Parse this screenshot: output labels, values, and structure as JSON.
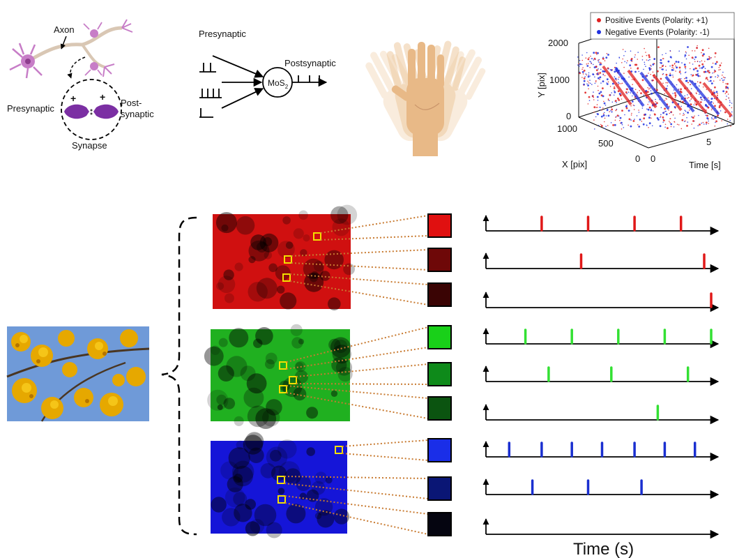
{
  "neuron_panel": {
    "axon_label": "Axon",
    "presynaptic_label": "Presynaptic",
    "postsynaptic_label_line1": "Post-",
    "postsynaptic_label_line2": "synaptic",
    "synapse_label": "Synapse",
    "plus_sign": "+",
    "colors": {
      "neuron": "#c77dc7",
      "synapse_body": "#7b2fa3",
      "axon": "#d9c7b4"
    }
  },
  "mos2_panel": {
    "presynaptic_label": "Presynaptic",
    "postsynaptic_label": "Postsynaptic",
    "node_label": "MoS",
    "node_subscript": "2"
  },
  "hand_panel": {
    "icon": "waving-hand-icon",
    "skin_color": "#eecaa0"
  },
  "event_plot": {
    "legend": [
      {
        "label": "Positive Events (Polarity: +1)",
        "color": "#e02020"
      },
      {
        "label": "Negative Events (Polarity: -1)",
        "color": "#2030e0"
      }
    ],
    "y_axis_label": "Y [pix]",
    "x_axis_label": "X [pix]",
    "t_axis_label": "Time [s]",
    "y_ticks": [
      "2000",
      "1000",
      "0"
    ],
    "x_ticks": [
      "1000",
      "500",
      "0"
    ],
    "t_ticks": [
      "0",
      "5"
    ]
  },
  "main_panel": {
    "time_label": "Time (s)",
    "source_image": "yellow-flowers-photo",
    "channels": [
      {
        "name": "red",
        "image_color": "#d01010",
        "spike_color": "#e01818",
        "swatches": [
          "#e01010",
          "#6e0808",
          "#3a0404"
        ]
      },
      {
        "name": "green",
        "image_color": "#20b020",
        "spike_color": "#33e033",
        "swatches": [
          "#19d019",
          "#0e8a1a",
          "#0b5410"
        ]
      },
      {
        "name": "blue",
        "image_color": "#1515d8",
        "spike_color": "#1a2fd0",
        "swatches": [
          "#1a2ee8",
          "#0a1675",
          "#050510"
        ]
      }
    ],
    "spike_trains": [
      {
        "channel": "red",
        "times": [
          0.24,
          0.44,
          0.64,
          0.84
        ]
      },
      {
        "channel": "red",
        "times": [
          0.41,
          0.94
        ]
      },
      {
        "channel": "red",
        "times": [
          0.97
        ]
      },
      {
        "channel": "green",
        "times": [
          0.17,
          0.37,
          0.57,
          0.77,
          0.97
        ]
      },
      {
        "channel": "green",
        "times": [
          0.27,
          0.54,
          0.87
        ]
      },
      {
        "channel": "green",
        "times": [
          0.74
        ]
      },
      {
        "channel": "blue",
        "times": [
          0.1,
          0.24,
          0.37,
          0.5,
          0.64,
          0.77,
          0.9
        ]
      },
      {
        "channel": "blue",
        "times": [
          0.2,
          0.44,
          0.67
        ]
      },
      {
        "channel": "blue",
        "times": []
      }
    ]
  }
}
